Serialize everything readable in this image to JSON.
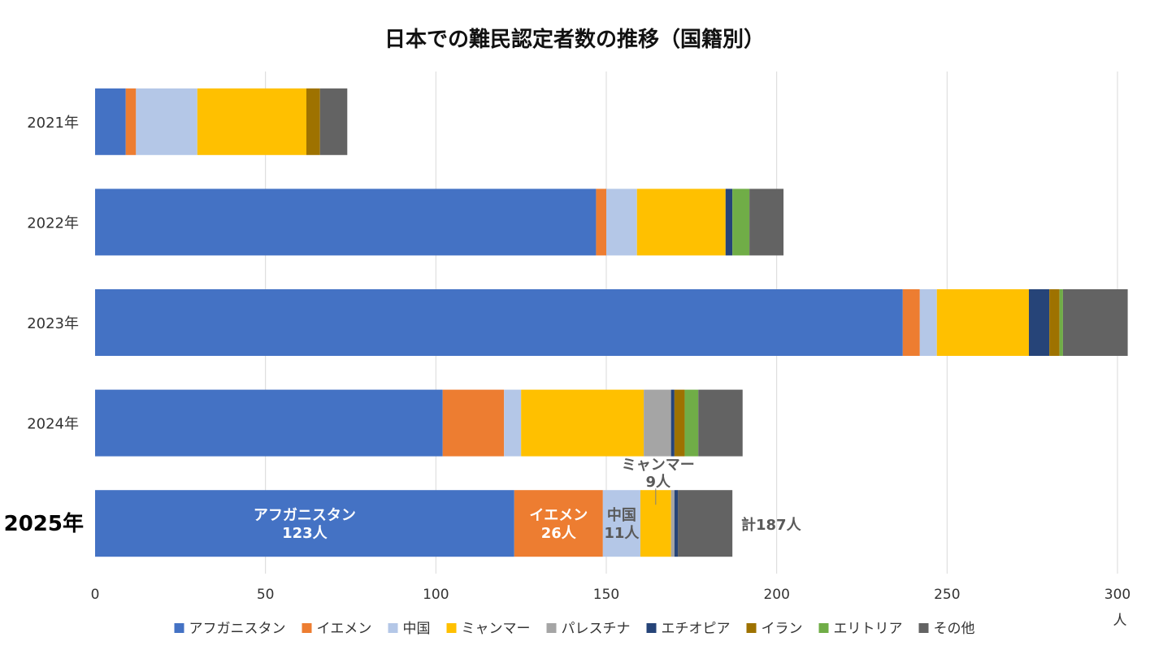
{
  "chart_data": {
    "type": "bar",
    "orientation": "horizontal",
    "stacked": true,
    "title": "日本での難民認定者数の推移（国籍別）",
    "unit_label": "人",
    "xlim": [
      0,
      300
    ],
    "x_ticks": [
      "0",
      "50",
      "100",
      "150",
      "200",
      "250",
      "300"
    ],
    "categories": [
      "2021年",
      "2022年",
      "2023年",
      "2024年",
      "2025年"
    ],
    "highlight_category": "2025年",
    "series": [
      {
        "name": "アフガニスタン",
        "color": "#4472C4",
        "values": [
          9,
          147,
          237,
          102,
          123
        ]
      },
      {
        "name": "イエメン",
        "color": "#ED7D31",
        "values": [
          3,
          3,
          5,
          18,
          26
        ]
      },
      {
        "name": "中国",
        "color": "#B4C7E7",
        "values": [
          18,
          9,
          5,
          5,
          11
        ]
      },
      {
        "name": "ミャンマー",
        "color": "#FFC000",
        "values": [
          32,
          26,
          27,
          36,
          9
        ]
      },
      {
        "name": "パレスチナ",
        "color": "#A5A5A5",
        "values": [
          0,
          0,
          0,
          8,
          1
        ]
      },
      {
        "name": "エチオピア",
        "color": "#264478",
        "values": [
          0,
          2,
          6,
          1,
          1
        ]
      },
      {
        "name": "イラン",
        "color": "#9E7200",
        "values": [
          4,
          0,
          3,
          3,
          0
        ]
      },
      {
        "name": "エリトリア",
        "color": "#70AD47",
        "values": [
          0,
          5,
          1,
          4,
          0
        ]
      },
      {
        "name": "その他",
        "color": "#636363",
        "values": [
          8,
          10,
          19,
          13,
          16
        ]
      }
    ],
    "annotations": [
      {
        "category": "2025年",
        "series": "アフガニスタン",
        "lines": [
          "アフガニスタン",
          "123人"
        ],
        "color": "#ffffff"
      },
      {
        "category": "2025年",
        "series": "イエメン",
        "lines": [
          "イエメン",
          "26人"
        ],
        "color": "#ffffff"
      },
      {
        "category": "2025年",
        "series": "中国",
        "lines": [
          "中国",
          "11人"
        ],
        "color": "#595959"
      },
      {
        "category": "2025年",
        "series": "ミャンマー",
        "lines": [
          "ミャンマー",
          "9人"
        ],
        "color": "#595959",
        "callout": true
      }
    ],
    "total_label": "計187人",
    "legend_position": "bottom"
  }
}
